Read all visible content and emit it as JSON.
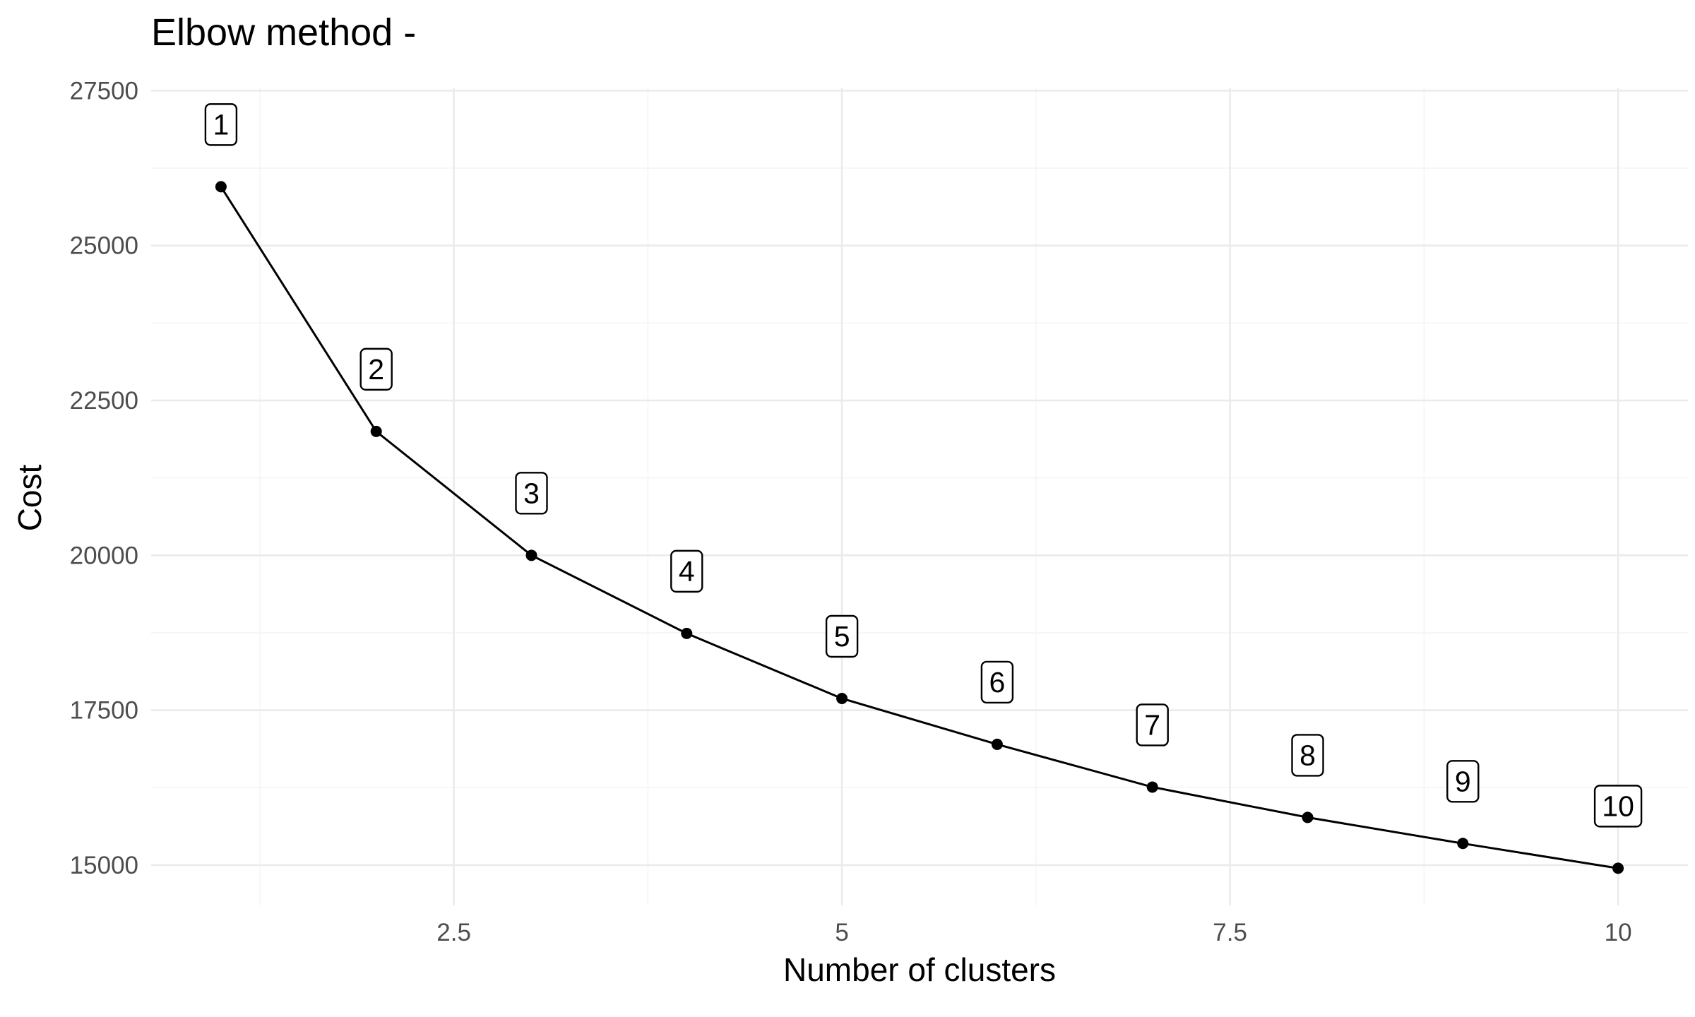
{
  "chart_data": {
    "type": "line",
    "title": "Elbow method -",
    "xlabel": "Number of clusters",
    "ylabel": "Cost",
    "x": [
      1,
      2,
      3,
      4,
      5,
      6,
      7,
      8,
      9,
      10
    ],
    "series": [
      {
        "values": [
          25950,
          22000,
          20000,
          18740,
          17690,
          16950,
          16260,
          15770,
          15350,
          14950
        ]
      }
    ],
    "point_labels": [
      "1",
      "2",
      "3",
      "4",
      "5",
      "6",
      "7",
      "8",
      "9",
      "10"
    ],
    "xlim": [
      0.55,
      10.45
    ],
    "ylim": [
      14350,
      27550
    ],
    "x_ticks": [
      2.5,
      5,
      7.5,
      10
    ],
    "x_tick_labels": [
      "2.5",
      "5",
      "7.5",
      "10"
    ],
    "y_ticks": [
      15000,
      17500,
      20000,
      22500,
      25000,
      27500
    ],
    "y_tick_labels": [
      "15000",
      "17500",
      "20000",
      "22500",
      "25000",
      "27500"
    ],
    "grid": true,
    "legend": "none"
  }
}
